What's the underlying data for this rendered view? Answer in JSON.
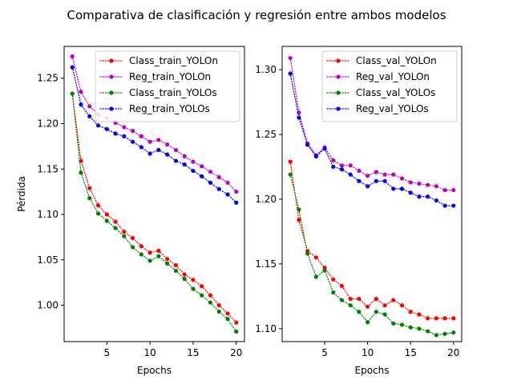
{
  "title": "Comparativa de clasificación y regresión entre ambos modelos",
  "chart_data": [
    {
      "type": "line",
      "xlabel": "Epochs",
      "ylabel": "Pérdida",
      "xlim": [
        0.05,
        20.95
      ],
      "ylim": [
        0.96,
        1.285
      ],
      "x_ticks": [
        5,
        10,
        15,
        20
      ],
      "y_ticks": [
        1.0,
        1.05,
        1.1,
        1.15,
        1.2,
        1.25
      ],
      "legend_position": "top-right",
      "x": [
        1,
        2,
        3,
        4,
        5,
        6,
        7,
        8,
        9,
        10,
        11,
        12,
        13,
        14,
        15,
        16,
        17,
        18,
        19,
        20
      ],
      "series": [
        {
          "name": "Class_train_YOLOn",
          "color": "#ff0000",
          "values": [
            1.233,
            1.159,
            1.129,
            1.11,
            1.1,
            1.092,
            1.081,
            1.074,
            1.065,
            1.058,
            1.06,
            1.051,
            1.044,
            1.034,
            1.028,
            1.021,
            1.011,
            1.0,
            0.991,
            0.981
          ]
        },
        {
          "name": "Reg_train_YOLOn",
          "color": "#bf00bf",
          "values": [
            1.274,
            1.235,
            1.219,
            1.21,
            1.206,
            1.201,
            1.196,
            1.192,
            1.186,
            1.18,
            1.182,
            1.177,
            1.171,
            1.164,
            1.158,
            1.153,
            1.147,
            1.141,
            1.135,
            1.125
          ]
        },
        {
          "name": "Class_train_YOLOs",
          "color": "#008000",
          "values": [
            1.233,
            1.146,
            1.118,
            1.101,
            1.093,
            1.085,
            1.076,
            1.064,
            1.056,
            1.049,
            1.054,
            1.046,
            1.038,
            1.029,
            1.018,
            1.011,
            1.003,
            0.993,
            0.985,
            0.971
          ]
        },
        {
          "name": "Reg_train_YOLOs",
          "color": "#0000ff",
          "values": [
            1.262,
            1.221,
            1.208,
            1.198,
            1.194,
            1.189,
            1.186,
            1.18,
            1.174,
            1.167,
            1.171,
            1.166,
            1.159,
            1.155,
            1.148,
            1.142,
            1.135,
            1.128,
            1.122,
            1.113
          ]
        }
      ]
    },
    {
      "type": "line",
      "xlabel": "Epochs",
      "ylabel": "",
      "xlim": [
        0.05,
        20.95
      ],
      "ylim": [
        1.09,
        1.318
      ],
      "x_ticks": [
        5,
        10,
        15,
        20
      ],
      "y_ticks": [
        1.1,
        1.15,
        1.2,
        1.25,
        1.3
      ],
      "legend_position": "top-right",
      "x": [
        1,
        2,
        3,
        4,
        5,
        6,
        7,
        8,
        9,
        10,
        11,
        12,
        13,
        14,
        15,
        16,
        17,
        18,
        19,
        20
      ],
      "series": [
        {
          "name": "Class_val_YOLOn",
          "color": "#ff0000",
          "values": [
            1.229,
            1.184,
            1.16,
            1.155,
            1.147,
            1.138,
            1.133,
            1.123,
            1.123,
            1.117,
            1.123,
            1.118,
            1.122,
            1.118,
            1.113,
            1.111,
            1.108,
            1.108,
            1.108,
            1.108
          ]
        },
        {
          "name": "Reg_val_YOLOn",
          "color": "#bf00bf",
          "values": [
            1.309,
            1.267,
            1.243,
            1.234,
            1.24,
            1.23,
            1.226,
            1.226,
            1.222,
            1.218,
            1.221,
            1.219,
            1.219,
            1.216,
            1.213,
            1.212,
            1.211,
            1.21,
            1.207,
            1.207
          ]
        },
        {
          "name": "Class_val_YOLOs",
          "color": "#008000",
          "values": [
            1.219,
            1.192,
            1.158,
            1.14,
            1.145,
            1.128,
            1.122,
            1.118,
            1.113,
            1.105,
            1.113,
            1.111,
            1.104,
            1.103,
            1.101,
            1.1,
            1.098,
            1.095,
            1.096,
            1.097
          ]
        },
        {
          "name": "Reg_val_YOLOs",
          "color": "#0000ff",
          "values": [
            1.297,
            1.263,
            1.242,
            1.233,
            1.239,
            1.225,
            1.223,
            1.219,
            1.214,
            1.21,
            1.214,
            1.214,
            1.208,
            1.208,
            1.205,
            1.202,
            1.202,
            1.199,
            1.195,
            1.195
          ]
        }
      ]
    }
  ]
}
